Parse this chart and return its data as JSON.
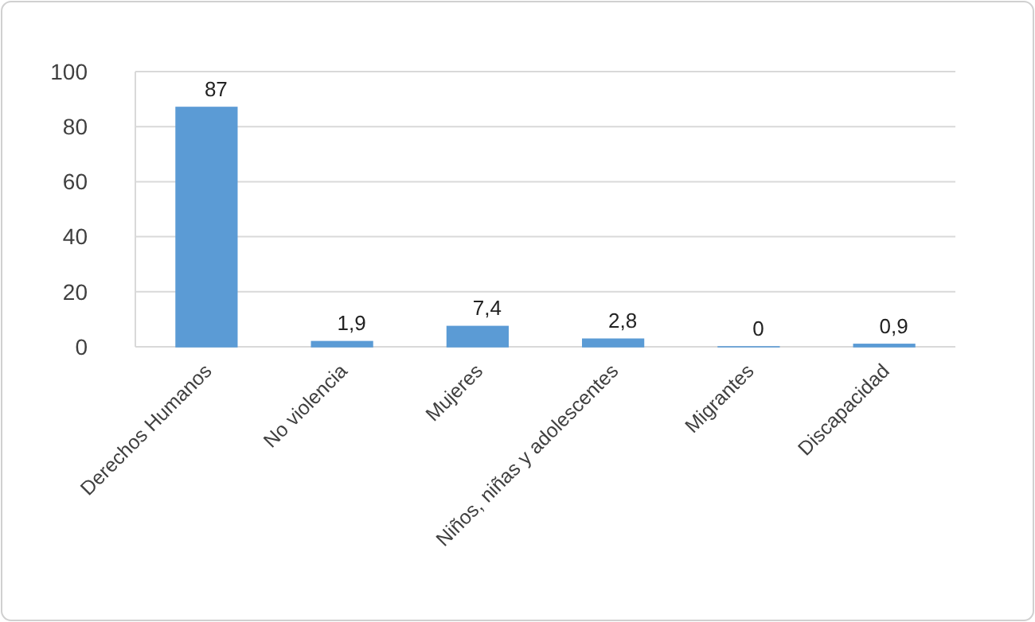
{
  "chart_data": {
    "type": "bar",
    "categories": [
      "Derechos Humanos",
      "No violencia",
      "Mujeres",
      "Niños, niñas y adolescentes",
      "Migrantes",
      "Discapacidad"
    ],
    "values": [
      87,
      1.9,
      7.4,
      2.8,
      0,
      0.9
    ],
    "value_labels": [
      "87",
      "1,9",
      "7,4",
      "2,8",
      "0",
      "0,9"
    ],
    "color": "#5b9bd5",
    "ylim": [
      0,
      100
    ],
    "yticks": [
      0,
      20,
      40,
      60,
      80,
      100
    ],
    "grid": "y"
  }
}
